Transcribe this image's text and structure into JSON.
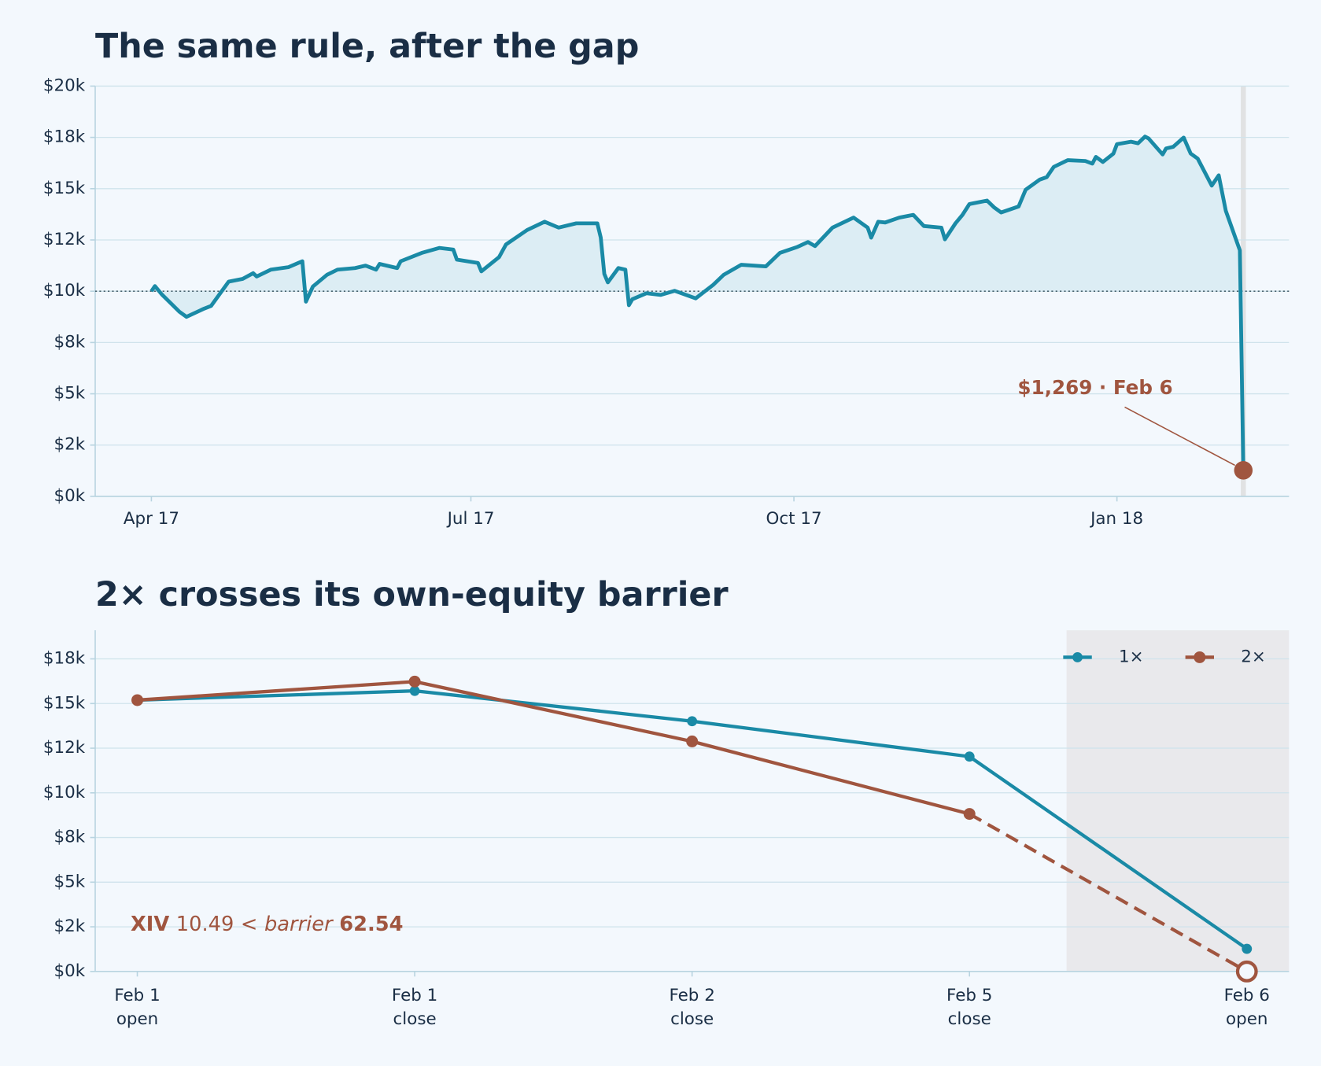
{
  "chart_data": [
    {
      "type": "line",
      "title": "The same rule, after the gap",
      "color": "#1a8aa6",
      "fill": "#dcedf4",
      "baseline": 10000,
      "grid": true,
      "x": [
        "2017-04-01",
        "2017-04-02",
        "2017-04-04",
        "2017-04-09",
        "2017-04-11",
        "2017-04-16",
        "2017-04-18",
        "2017-04-23",
        "2017-04-27",
        "2017-04-30",
        "2017-05-01",
        "2017-05-05",
        "2017-05-10",
        "2017-05-14",
        "2017-05-15",
        "2017-05-17",
        "2017-05-21",
        "2017-05-24",
        "2017-05-29",
        "2017-06-01",
        "2017-06-04",
        "2017-06-05",
        "2017-06-10",
        "2017-06-11",
        "2017-06-17",
        "2017-06-22",
        "2017-06-26",
        "2017-06-27",
        "2017-07-03",
        "2017-07-04",
        "2017-07-09",
        "2017-07-11",
        "2017-07-17",
        "2017-07-22",
        "2017-07-26",
        "2017-07-31",
        "2017-08-06",
        "2017-08-07",
        "2017-08-08",
        "2017-08-09",
        "2017-08-12",
        "2017-08-14",
        "2017-08-15",
        "2017-08-16",
        "2017-08-20",
        "2017-08-24",
        "2017-08-28",
        "2017-09-03",
        "2017-09-08",
        "2017-09-11",
        "2017-09-16",
        "2017-09-23",
        "2017-09-27",
        "2017-10-02",
        "2017-10-05",
        "2017-10-07",
        "2017-10-12",
        "2017-10-18",
        "2017-10-22",
        "2017-10-23",
        "2017-10-25",
        "2017-10-27",
        "2017-10-31",
        "2017-11-04",
        "2017-11-07",
        "2017-11-12",
        "2017-11-13",
        "2017-11-16",
        "2017-11-18",
        "2017-11-20",
        "2017-11-25",
        "2017-11-27",
        "2017-11-29",
        "2017-12-04",
        "2017-12-06",
        "2017-12-10",
        "2017-12-12",
        "2017-12-14",
        "2017-12-18",
        "2017-12-23",
        "2017-12-25",
        "2017-12-26",
        "2017-12-28",
        "2017-12-31",
        "2018-01-01",
        "2018-01-05",
        "2018-01-07",
        "2018-01-09",
        "2018-01-10",
        "2018-01-14",
        "2018-01-15",
        "2018-01-17",
        "2018-01-20",
        "2018-01-22",
        "2018-01-24",
        "2018-01-28",
        "2018-01-30",
        "2018-02-01",
        "2018-02-05",
        "2018-02-06"
      ],
      "values": [
        10000,
        10250,
        9840,
        9000,
        8750,
        9150,
        9280,
        10470,
        10600,
        10880,
        10720,
        11050,
        11170,
        11460,
        9490,
        10230,
        10800,
        11050,
        11130,
        11250,
        11050,
        11330,
        11130,
        11460,
        11870,
        12110,
        12030,
        11540,
        11380,
        10970,
        11660,
        12280,
        12980,
        13390,
        13100,
        13310,
        13310,
        12610,
        10840,
        10430,
        11130,
        11050,
        9320,
        9610,
        9900,
        9820,
        10020,
        9650,
        10310,
        10800,
        11290,
        11210,
        11870,
        12160,
        12400,
        12200,
        13100,
        13590,
        13100,
        12610,
        13390,
        13350,
        13590,
        13720,
        13180,
        13100,
        12530,
        13310,
        13720,
        14250,
        14420,
        14090,
        13840,
        14130,
        14950,
        15440,
        15560,
        16060,
        16390,
        16350,
        16220,
        16550,
        16300,
        16710,
        17170,
        17290,
        17210,
        17540,
        17450,
        16670,
        16960,
        17040,
        17490,
        16710,
        16470,
        15150,
        15650,
        13920,
        11990,
        1269
      ],
      "xlim": [
        "2017-03-16",
        "2018-02-19"
      ],
      "xticks": [
        {
          "value": "2017-04-01",
          "label": "Apr 17"
        },
        {
          "value": "2017-07-01",
          "label": "Jul 17"
        },
        {
          "value": "2017-10-01",
          "label": "Oct 17"
        },
        {
          "value": "2018-01-01",
          "label": "Jan 18"
        }
      ],
      "ylim": [
        0,
        20000
      ],
      "yticks": [
        {
          "value": 0,
          "label": "$0k"
        },
        {
          "value": 2500,
          "label": "$2k"
        },
        {
          "value": 5000,
          "label": "$5k"
        },
        {
          "value": 7500,
          "label": "$8k"
        },
        {
          "value": 10000,
          "label": "$10k"
        },
        {
          "value": 12500,
          "label": "$12k"
        },
        {
          "value": 15000,
          "label": "$15k"
        },
        {
          "value": 17500,
          "label": "$18k"
        },
        {
          "value": 20000,
          "label": "$20k"
        }
      ],
      "annotation": {
        "text": "$1,269 · Feb 6",
        "color": "#a0553f"
      }
    },
    {
      "type": "line",
      "title": "2× crosses its own-equity barrier",
      "grid": true,
      "legend": "upper right",
      "categories": [
        [
          "Feb 1",
          "open"
        ],
        [
          "Feb 1",
          "close"
        ],
        [
          "Feb 2",
          "close"
        ],
        [
          "Feb 5",
          "close"
        ],
        [
          "Feb 6",
          "open"
        ]
      ],
      "series": [
        {
          "name": "1×",
          "color": "#1a8aa6",
          "values": [
            15190,
            15710,
            14010,
            12030,
            1269
          ]
        },
        {
          "name": "2×",
          "color": "#a0553f",
          "values": [
            15190,
            16230,
            12880,
            8820,
            0
          ],
          "dashed_last_segment": true,
          "hollow_last_marker": true
        }
      ],
      "ylim": [
        0,
        19100
      ],
      "yticks": [
        {
          "value": 0,
          "label": "$0k"
        },
        {
          "value": 2500,
          "label": "$2k"
        },
        {
          "value": 5000,
          "label": "$5k"
        },
        {
          "value": 7500,
          "label": "$8k"
        },
        {
          "value": 10000,
          "label": "$10k"
        },
        {
          "value": 12500,
          "label": "$12k"
        },
        {
          "value": 15000,
          "label": "$15k"
        },
        {
          "value": 17500,
          "label": "$18k"
        }
      ],
      "annotation": {
        "ticker": "XIV",
        "value": 10.49,
        "relation": "<",
        "label": "barrier",
        "barrier": 62.54,
        "color": "#a0553f"
      }
    }
  ]
}
